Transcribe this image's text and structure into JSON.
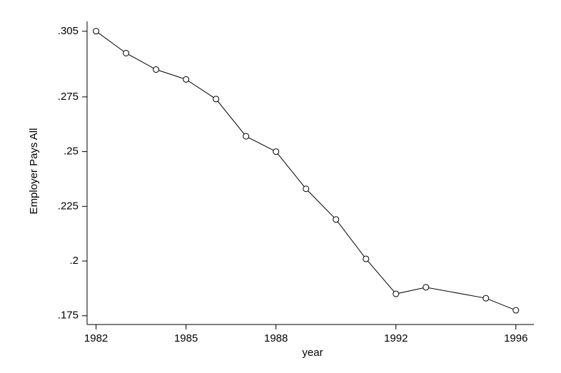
{
  "chart_data": {
    "type": "line",
    "x_label": "year",
    "y_label": "Employer Pays All",
    "x": [
      1982,
      1983,
      1984,
      1985,
      1986,
      1987,
      1988,
      1989,
      1990,
      1991,
      1992,
      1993,
      1995,
      1996
    ],
    "series": [
      {
        "name": "Employer Pays All",
        "color": "#000000",
        "values": [
          0.305,
          0.295,
          0.2875,
          0.283,
          0.274,
          0.257,
          0.25,
          0.233,
          0.219,
          0.201,
          0.185,
          0.188,
          0.183,
          0.1775
        ]
      }
    ],
    "xlim": [
      1981.7,
      1996.6
    ],
    "ylim": [
      0.171,
      0.3095
    ],
    "xticks": [
      1982,
      1985,
      1988,
      1992,
      1996
    ],
    "yticks": [
      {
        "value": 0.175,
        "label": ".175"
      },
      {
        "value": 0.2,
        "label": ".2"
      },
      {
        "value": 0.225,
        "label": ".225"
      },
      {
        "value": 0.25,
        "label": ".25"
      },
      {
        "value": 0.275,
        "label": ".275"
      },
      {
        "value": 0.305,
        "label": ".305"
      }
    ],
    "grid": false,
    "marker": "hollow-circle"
  }
}
